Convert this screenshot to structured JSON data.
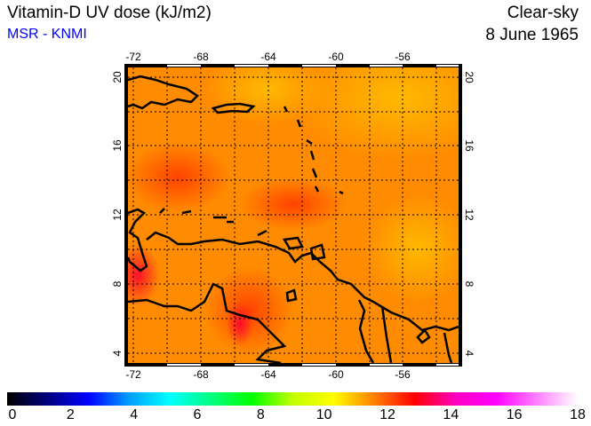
{
  "header": {
    "title": "Vitamin-D UV dose (kJ/m2)",
    "source": "MSR - KNMI",
    "condition": "Clear-sky",
    "date": "8 June 1965"
  },
  "map": {
    "lon_ticks": [
      "-72",
      "-68",
      "-64",
      "-60",
      "-56"
    ],
    "lat_ticks": [
      "20",
      "16",
      "12",
      "8",
      "4"
    ],
    "lon_range": [
      -72.5,
      -52.5
    ],
    "lat_range": [
      3.3,
      20.8
    ]
  },
  "colorbar": {
    "labels": [
      "0",
      "2",
      "4",
      "6",
      "8",
      "10",
      "12",
      "14",
      "16",
      "18"
    ],
    "colors": [
      "#000000",
      "#000080",
      "#0000ff",
      "#00a0ff",
      "#00ffff",
      "#00ff80",
      "#00ff00",
      "#c0ff00",
      "#ffff00",
      "#ff8000",
      "#ff0000",
      "#ff00c0",
      "#ff00ff",
      "#ff80ff",
      "#ffffff"
    ]
  }
}
